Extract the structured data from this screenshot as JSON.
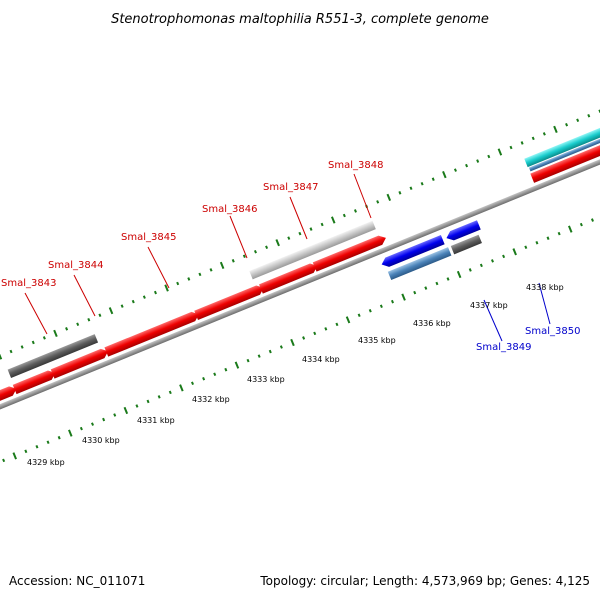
{
  "title": "Stenotrophomonas maltophilia R551-3, complete genome",
  "footer": {
    "accession": "Accession: NC_011071",
    "summary": "Topology: circular; Length: 4,573,969 bp; Genes: 4,125"
  },
  "colors": {
    "forward_gene": "#ff0000",
    "reverse_gene": "#0000ff",
    "forward_label": "#cc0000",
    "reverse_label": "#0000cc",
    "backbone": "#8c8c8c",
    "tick": "#1a7a1a"
  },
  "genes": [
    {
      "name": "Smal_3843",
      "strand": "forward"
    },
    {
      "name": "Smal_3844",
      "strand": "forward"
    },
    {
      "name": "Smal_3845",
      "strand": "forward"
    },
    {
      "name": "Smal_3846",
      "strand": "forward"
    },
    {
      "name": "Smal_3847",
      "strand": "forward"
    },
    {
      "name": "Smal_3848",
      "strand": "forward"
    },
    {
      "name": "Smal_3849",
      "strand": "reverse"
    },
    {
      "name": "Smal_3850",
      "strand": "reverse"
    }
  ],
  "kbp_ticks": [
    "4329 kbp",
    "4330 kbp",
    "4331 kbp",
    "4332 kbp",
    "4333 kbp",
    "4334 kbp",
    "4335 kbp",
    "4336 kbp",
    "4337 kbp",
    "4338 kbp"
  ]
}
